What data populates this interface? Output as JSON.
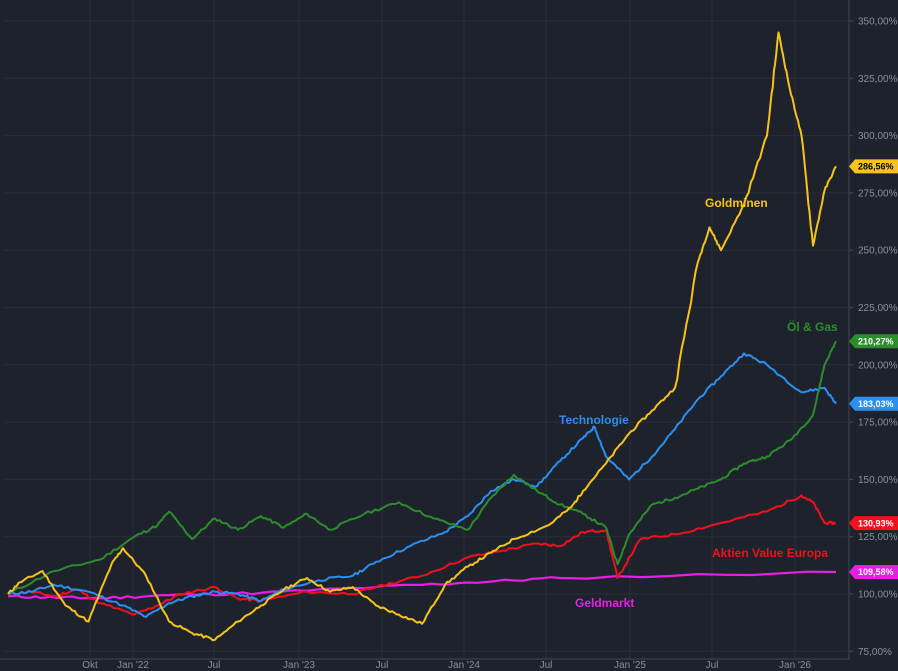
{
  "chart_data": {
    "type": "line",
    "title": "",
    "xlabel": "",
    "ylabel": "",
    "x_ticks": [
      "Okt",
      "Jan '22",
      "Jul",
      "Jan '23",
      "Jul",
      "Jan '24",
      "Jul",
      "Jan '25",
      "Jul",
      "Jan '26"
    ],
    "y_ticks": [
      "75,00%",
      "100,00%",
      "125,00%",
      "150,00%",
      "175,00%",
      "200,00%",
      "225,00%",
      "250,00%",
      "275,00%",
      "300,00%",
      "325,00%",
      "350,00%"
    ],
    "ylim": [
      75,
      350
    ],
    "ystep": 25,
    "grid": true,
    "series": [
      {
        "name": "Geldmarkt",
        "color": "#e91ee3",
        "last_label": "109,58%",
        "points": [
          [
            0,
            99
          ],
          [
            0.2,
            98.5
          ],
          [
            0.4,
            98.2
          ],
          [
            0.7,
            99.5
          ],
          [
            1.1,
            100.5
          ],
          [
            1.6,
            103
          ],
          [
            2.0,
            105
          ],
          [
            2.4,
            107
          ],
          [
            3.6,
            109.6
          ]
        ]
      },
      {
        "name": "Aktien Value Europa",
        "color": "#f2101c",
        "last_label": "130,93%",
        "points": [
          [
            0,
            100
          ],
          [
            0.1,
            101
          ],
          [
            0.2,
            99
          ],
          [
            0.3,
            102
          ],
          [
            0.4,
            96
          ],
          [
            0.55,
            91
          ],
          [
            0.65,
            95
          ],
          [
            0.75,
            100
          ],
          [
            0.9,
            103
          ],
          [
            1.0,
            98
          ],
          [
            1.1,
            97
          ],
          [
            1.3,
            101
          ],
          [
            1.5,
            100
          ],
          [
            1.6,
            103
          ],
          [
            1.8,
            108
          ],
          [
            2.0,
            116
          ],
          [
            2.15,
            119
          ],
          [
            2.3,
            122
          ],
          [
            2.4,
            121
          ],
          [
            2.5,
            127
          ],
          [
            2.6,
            128
          ],
          [
            2.65,
            107
          ],
          [
            2.75,
            124
          ],
          [
            2.9,
            126
          ],
          [
            3.1,
            131
          ],
          [
            3.3,
            136
          ],
          [
            3.45,
            143
          ],
          [
            3.5,
            140
          ],
          [
            3.55,
            131
          ],
          [
            3.6,
            130.9
          ]
        ]
      },
      {
        "name": "Technologie",
        "color": "#2a8fef",
        "last_label": "183,03%",
        "points": [
          [
            0,
            100
          ],
          [
            0.1,
            101
          ],
          [
            0.2,
            104
          ],
          [
            0.35,
            101
          ],
          [
            0.5,
            95
          ],
          [
            0.6,
            90
          ],
          [
            0.7,
            96
          ],
          [
            0.8,
            99
          ],
          [
            0.9,
            101
          ],
          [
            1.0,
            100
          ],
          [
            1.1,
            97
          ],
          [
            1.2,
            102
          ],
          [
            1.35,
            106
          ],
          [
            1.5,
            108
          ],
          [
            1.6,
            114
          ],
          [
            1.75,
            121
          ],
          [
            1.9,
            127
          ],
          [
            2.0,
            134
          ],
          [
            2.1,
            145
          ],
          [
            2.2,
            150
          ],
          [
            2.3,
            147
          ],
          [
            2.4,
            158
          ],
          [
            2.5,
            168
          ],
          [
            2.55,
            173
          ],
          [
            2.6,
            160
          ],
          [
            2.7,
            150
          ],
          [
            2.8,
            160
          ],
          [
            2.9,
            172
          ],
          [
            3.0,
            185
          ],
          [
            3.1,
            195
          ],
          [
            3.2,
            205
          ],
          [
            3.3,
            200
          ],
          [
            3.45,
            188
          ],
          [
            3.55,
            190
          ],
          [
            3.6,
            183
          ]
        ]
      },
      {
        "name": "Öl & Gas",
        "color": "#2c8d2c",
        "last_label": "210,27%",
        "points": [
          [
            0,
            100
          ],
          [
            0.2,
            110
          ],
          [
            0.4,
            115
          ],
          [
            0.55,
            125
          ],
          [
            0.65,
            130
          ],
          [
            0.7,
            136
          ],
          [
            0.8,
            124
          ],
          [
            0.9,
            133
          ],
          [
            1.0,
            128
          ],
          [
            1.1,
            134
          ],
          [
            1.2,
            129
          ],
          [
            1.3,
            135
          ],
          [
            1.4,
            128
          ],
          [
            1.55,
            135
          ],
          [
            1.7,
            140
          ],
          [
            1.85,
            133
          ],
          [
            2.0,
            128
          ],
          [
            2.1,
            142
          ],
          [
            2.2,
            152
          ],
          [
            2.3,
            145
          ],
          [
            2.4,
            139
          ],
          [
            2.5,
            135
          ],
          [
            2.6,
            129
          ],
          [
            2.65,
            113
          ],
          [
            2.7,
            126
          ],
          [
            2.8,
            139
          ],
          [
            2.9,
            142
          ],
          [
            3.0,
            146
          ],
          [
            3.1,
            150
          ],
          [
            3.2,
            157
          ],
          [
            3.3,
            160
          ],
          [
            3.4,
            167
          ],
          [
            3.5,
            178
          ],
          [
            3.55,
            200
          ],
          [
            3.6,
            210.3
          ]
        ]
      },
      {
        "name": "Goldminen",
        "color": "#f6c419",
        "last_label": "286,56%",
        "points": [
          [
            0,
            100
          ],
          [
            0.05,
            105
          ],
          [
            0.15,
            110
          ],
          [
            0.25,
            95
          ],
          [
            0.35,
            88
          ],
          [
            0.45,
            113
          ],
          [
            0.5,
            120
          ],
          [
            0.6,
            108
          ],
          [
            0.7,
            88
          ],
          [
            0.8,
            83
          ],
          [
            0.9,
            80
          ],
          [
            1.0,
            88
          ],
          [
            1.1,
            95
          ],
          [
            1.2,
            102
          ],
          [
            1.3,
            107
          ],
          [
            1.4,
            101
          ],
          [
            1.5,
            103
          ],
          [
            1.6,
            95
          ],
          [
            1.7,
            91
          ],
          [
            1.8,
            87
          ],
          [
            1.9,
            104
          ],
          [
            2.0,
            112
          ],
          [
            2.1,
            118
          ],
          [
            2.2,
            124
          ],
          [
            2.35,
            130
          ],
          [
            2.45,
            138
          ],
          [
            2.5,
            145
          ],
          [
            2.6,
            157
          ],
          [
            2.7,
            170
          ],
          [
            2.8,
            180
          ],
          [
            2.9,
            190
          ],
          [
            3.0,
            245
          ],
          [
            3.05,
            260
          ],
          [
            3.1,
            250
          ],
          [
            3.2,
            270
          ],
          [
            3.3,
            300
          ],
          [
            3.35,
            345
          ],
          [
            3.4,
            320
          ],
          [
            3.45,
            300
          ],
          [
            3.5,
            252
          ],
          [
            3.55,
            276
          ],
          [
            3.6,
            286.6
          ]
        ]
      }
    ]
  }
}
